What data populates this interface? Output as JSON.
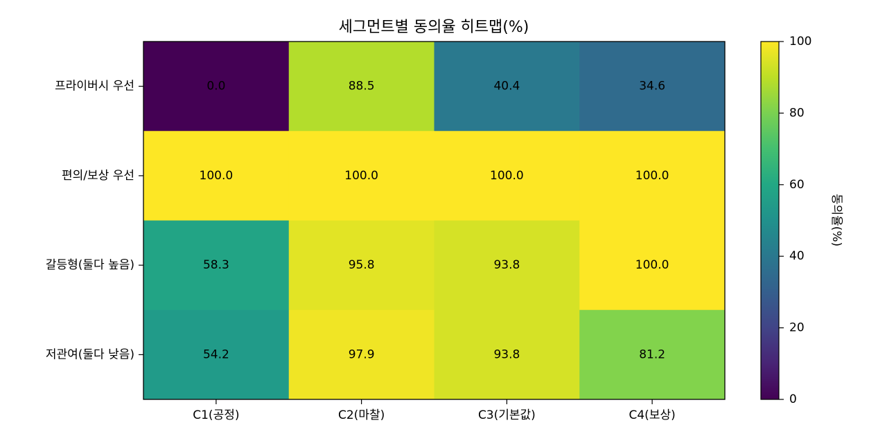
{
  "chart_data": {
    "type": "heatmap",
    "title": "세그먼트별 동의율 히트맵(%)",
    "rows": [
      "프라이버시 우선",
      "편의/보상 우선",
      "갈등형(둘다 높음)",
      "저관여(둘다 낮음)"
    ],
    "columns": [
      "C1(공정)",
      "C2(마찰)",
      "C3(기본값)",
      "C4(보상)"
    ],
    "values": [
      [
        0.0,
        88.5,
        40.4,
        34.6
      ],
      [
        100.0,
        100.0,
        100.0,
        100.0
      ],
      [
        58.3,
        95.8,
        93.8,
        100.0
      ],
      [
        54.2,
        97.9,
        93.8,
        81.2
      ]
    ],
    "value_format": "0.0",
    "colormap": "viridis",
    "vmin": 0,
    "vmax": 100,
    "colorbar": {
      "label": "동의율(%)",
      "ticks": [
        0,
        20,
        40,
        60,
        80,
        100
      ]
    }
  }
}
